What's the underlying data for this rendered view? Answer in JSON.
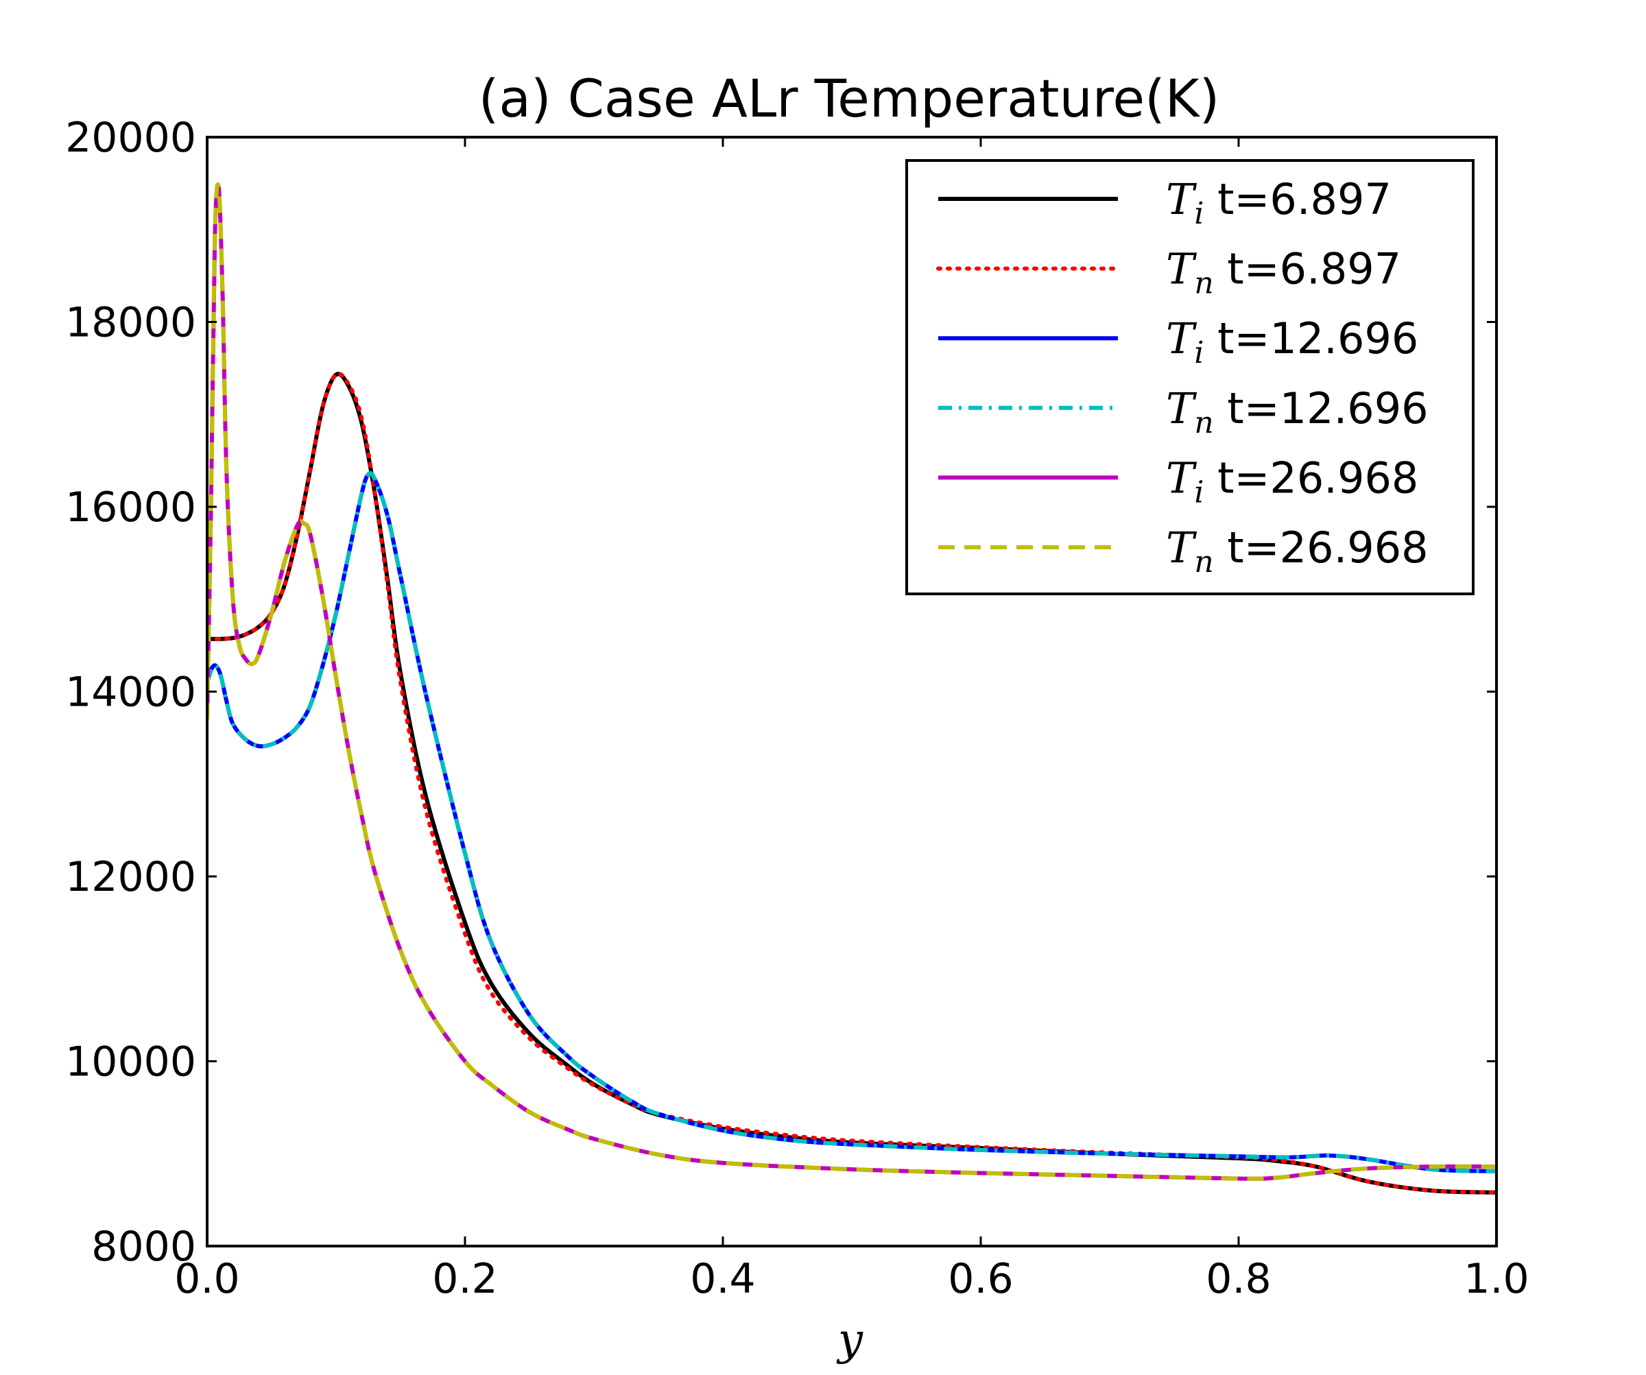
{
  "chart_data": {
    "type": "line",
    "title": "(a) Case ALr Temperature(K)",
    "xlabel": "y",
    "ylabel": "",
    "xlim": [
      0.0,
      1.0
    ],
    "ylim": [
      8000,
      20000
    ],
    "xticks": [
      "0.0",
      "0.2",
      "0.4",
      "0.6",
      "0.8",
      "1.0"
    ],
    "yticks": [
      "8000",
      "10000",
      "12000",
      "14000",
      "16000",
      "18000",
      "20000"
    ],
    "grid": false,
    "legend": "top-right",
    "series": [
      {
        "name_symbol": "T",
        "name_sub": "i",
        "name_rest": " t=6.897",
        "color": "#000000",
        "style": "solid",
        "x": [
          0,
          0.01,
          0.02,
          0.03,
          0.04,
          0.05,
          0.06,
          0.07,
          0.08,
          0.09,
          0.1,
          0.11,
          0.12,
          0.13,
          0.14,
          0.15,
          0.17,
          0.2,
          0.22,
          0.25,
          0.28,
          0.3,
          0.33,
          0.35,
          0.4,
          0.45,
          0.5,
          0.6,
          0.7,
          0.8,
          0.83,
          0.86,
          0.9,
          0.95,
          1.0
        ],
        "y": [
          14570,
          14570,
          14580,
          14620,
          14700,
          14850,
          15150,
          15700,
          16400,
          17100,
          17430,
          17300,
          16900,
          16150,
          15200,
          14200,
          12850,
          11500,
          10850,
          10300,
          9950,
          9750,
          9530,
          9420,
          9270,
          9180,
          9120,
          9060,
          9000,
          8950,
          8920,
          8860,
          8700,
          8600,
          8580
        ]
      },
      {
        "name_symbol": "T",
        "name_sub": "n",
        "name_rest": " t=6.897",
        "color": "#ff0000",
        "style": "dotted",
        "x": [
          0,
          0.01,
          0.02,
          0.03,
          0.04,
          0.05,
          0.06,
          0.07,
          0.08,
          0.09,
          0.1,
          0.11,
          0.12,
          0.13,
          0.14,
          0.15,
          0.17,
          0.2,
          0.22,
          0.25,
          0.28,
          0.3,
          0.33,
          0.35,
          0.4,
          0.45,
          0.5,
          0.6,
          0.7,
          0.8,
          0.83,
          0.86,
          0.9,
          0.95,
          1.0
        ],
        "y": [
          14570,
          14570,
          14580,
          14620,
          14700,
          14850,
          15150,
          15700,
          16400,
          17100,
          17430,
          17320,
          16950,
          16150,
          15150,
          14100,
          12700,
          11380,
          10750,
          10250,
          9920,
          9740,
          9530,
          9430,
          9290,
          9200,
          9140,
          9070,
          9010,
          8960,
          8930,
          8860,
          8700,
          8600,
          8580
        ]
      },
      {
        "name_symbol": "T",
        "name_sub": "i",
        "name_rest": " t=12.696",
        "color": "#0000ff",
        "style": "solid",
        "x": [
          0,
          0.005,
          0.01,
          0.015,
          0.02,
          0.03,
          0.04,
          0.05,
          0.06,
          0.07,
          0.08,
          0.09,
          0.1,
          0.11,
          0.12,
          0.125,
          0.13,
          0.14,
          0.15,
          0.17,
          0.2,
          0.22,
          0.25,
          0.28,
          0.3,
          0.33,
          0.35,
          0.4,
          0.45,
          0.5,
          0.6,
          0.7,
          0.8,
          0.84,
          0.87,
          0.9,
          0.95,
          1.0
        ],
        "y": [
          14100,
          14280,
          14200,
          13900,
          13650,
          13480,
          13410,
          13430,
          13500,
          13620,
          13850,
          14300,
          14850,
          15500,
          16150,
          16350,
          16300,
          15900,
          15250,
          13950,
          12250,
          11300,
          10500,
          10050,
          9830,
          9560,
          9430,
          9250,
          9150,
          9100,
          9040,
          9000,
          8970,
          8960,
          8980,
          8940,
          8830,
          8810
        ]
      },
      {
        "name_symbol": "T",
        "name_sub": "n",
        "name_rest": " t=12.696",
        "color": "#00bfbf",
        "style": "dashdot",
        "x": [
          0,
          0.005,
          0.01,
          0.015,
          0.02,
          0.03,
          0.04,
          0.05,
          0.06,
          0.07,
          0.08,
          0.09,
          0.1,
          0.11,
          0.12,
          0.125,
          0.13,
          0.14,
          0.15,
          0.17,
          0.2,
          0.22,
          0.25,
          0.28,
          0.3,
          0.33,
          0.35,
          0.4,
          0.45,
          0.5,
          0.6,
          0.7,
          0.8,
          0.84,
          0.87,
          0.9,
          0.95,
          1.0
        ],
        "y": [
          14100,
          14280,
          14200,
          13900,
          13650,
          13480,
          13410,
          13430,
          13500,
          13620,
          13850,
          14300,
          14850,
          15500,
          16150,
          16350,
          16300,
          15900,
          15250,
          13950,
          12250,
          11300,
          10500,
          10050,
          9830,
          9560,
          9430,
          9250,
          9150,
          9100,
          9040,
          9000,
          8970,
          8960,
          8980,
          8940,
          8830,
          8810
        ]
      },
      {
        "name_symbol": "T",
        "name_sub": "i",
        "name_rest": " t=26.968",
        "color": "#bf00bf",
        "style": "solid",
        "x": [
          0,
          0.003,
          0.006,
          0.009,
          0.012,
          0.015,
          0.02,
          0.025,
          0.03,
          0.035,
          0.04,
          0.05,
          0.06,
          0.07,
          0.075,
          0.08,
          0.09,
          0.1,
          0.11,
          0.12,
          0.13,
          0.15,
          0.17,
          0.2,
          0.22,
          0.25,
          0.28,
          0.3,
          0.35,
          0.4,
          0.5,
          0.6,
          0.7,
          0.8,
          0.83,
          0.86,
          0.9,
          0.95,
          1.0
        ],
        "y": [
          13700,
          16000,
          18900,
          19450,
          18300,
          16400,
          15000,
          14500,
          14350,
          14300,
          14400,
          14850,
          15400,
          15800,
          15820,
          15700,
          15000,
          14150,
          13350,
          12650,
          12050,
          11200,
          10600,
          10000,
          9750,
          9450,
          9260,
          9160,
          8990,
          8900,
          8830,
          8790,
          8760,
          8730,
          8740,
          8790,
          8840,
          8860,
          8860
        ]
      },
      {
        "name_symbol": "T",
        "name_sub": "n",
        "name_rest": " t=26.968",
        "color": "#bfbf00",
        "style": "dashed",
        "x": [
          0,
          0.003,
          0.006,
          0.009,
          0.012,
          0.015,
          0.02,
          0.025,
          0.03,
          0.035,
          0.04,
          0.05,
          0.06,
          0.07,
          0.075,
          0.08,
          0.09,
          0.1,
          0.11,
          0.12,
          0.13,
          0.15,
          0.17,
          0.2,
          0.22,
          0.25,
          0.28,
          0.3,
          0.35,
          0.4,
          0.5,
          0.6,
          0.7,
          0.8,
          0.83,
          0.86,
          0.9,
          0.95,
          1.0
        ],
        "y": [
          13700,
          16000,
          18900,
          19450,
          18300,
          16400,
          15000,
          14500,
          14350,
          14300,
          14400,
          14850,
          15400,
          15800,
          15820,
          15700,
          15000,
          14150,
          13350,
          12650,
          12050,
          11200,
          10600,
          10000,
          9750,
          9450,
          9260,
          9160,
          8990,
          8900,
          8830,
          8790,
          8760,
          8730,
          8740,
          8790,
          8840,
          8860,
          8860
        ]
      }
    ]
  }
}
